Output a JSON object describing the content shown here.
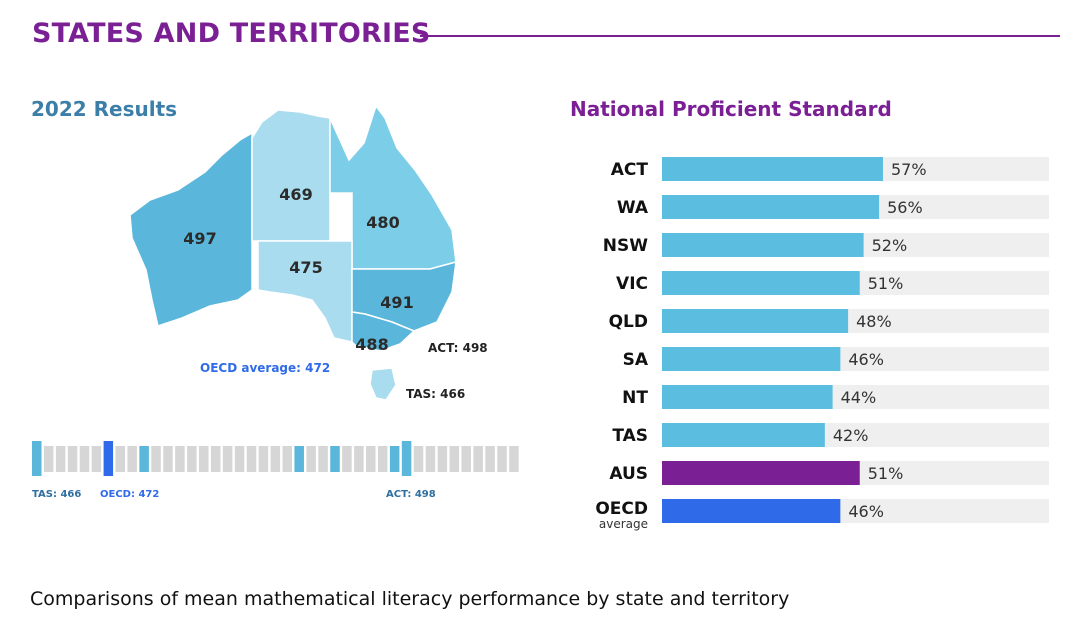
{
  "header": {
    "title": "STATES AND TERRITORIES",
    "results_title": "2022 Results",
    "nps_title": "National Proficient Standard",
    "caption": "Comparisons of mean mathematical literacy performance by state and territory"
  },
  "map": {
    "states": [
      {
        "name": "WA",
        "value": "497"
      },
      {
        "name": "NT",
        "value": "469"
      },
      {
        "name": "QLD",
        "value": "480"
      },
      {
        "name": "SA",
        "value": "475"
      },
      {
        "name": "NSW",
        "value": "491"
      },
      {
        "name": "VIC",
        "value": "488"
      }
    ],
    "act_label": "ACT: 498",
    "tas_label": "TAS: 466",
    "oecd_label": "OECD average: 472"
  },
  "strip": {
    "left_label": "TAS: 466",
    "mid_label": "OECD: 472",
    "right_label": "ACT: 498"
  },
  "colors": {
    "purple": "#7b1f95",
    "bar": "#5bbde0",
    "oecd": "#2f6be8",
    "track": "#efefef"
  },
  "chart_data": {
    "type": "bar",
    "title": "National Proficient Standard",
    "categories": [
      "ACT",
      "WA",
      "NSW",
      "VIC",
      "QLD",
      "SA",
      "NT",
      "TAS",
      "AUS",
      "OECD"
    ],
    "category_sublabels": [
      "",
      "",
      "",
      "",
      "",
      "",
      "",
      "",
      "",
      "average"
    ],
    "values": [
      57,
      56,
      52,
      51,
      48,
      46,
      44,
      42,
      51,
      46
    ],
    "value_labels": [
      "57%",
      "56%",
      "52%",
      "51%",
      "48%",
      "46%",
      "44%",
      "42%",
      "51%",
      "46%"
    ],
    "highlight": {
      "AUS": "#7b1f95",
      "OECD": "#2f6be8"
    },
    "ylim": [
      0,
      100
    ]
  }
}
